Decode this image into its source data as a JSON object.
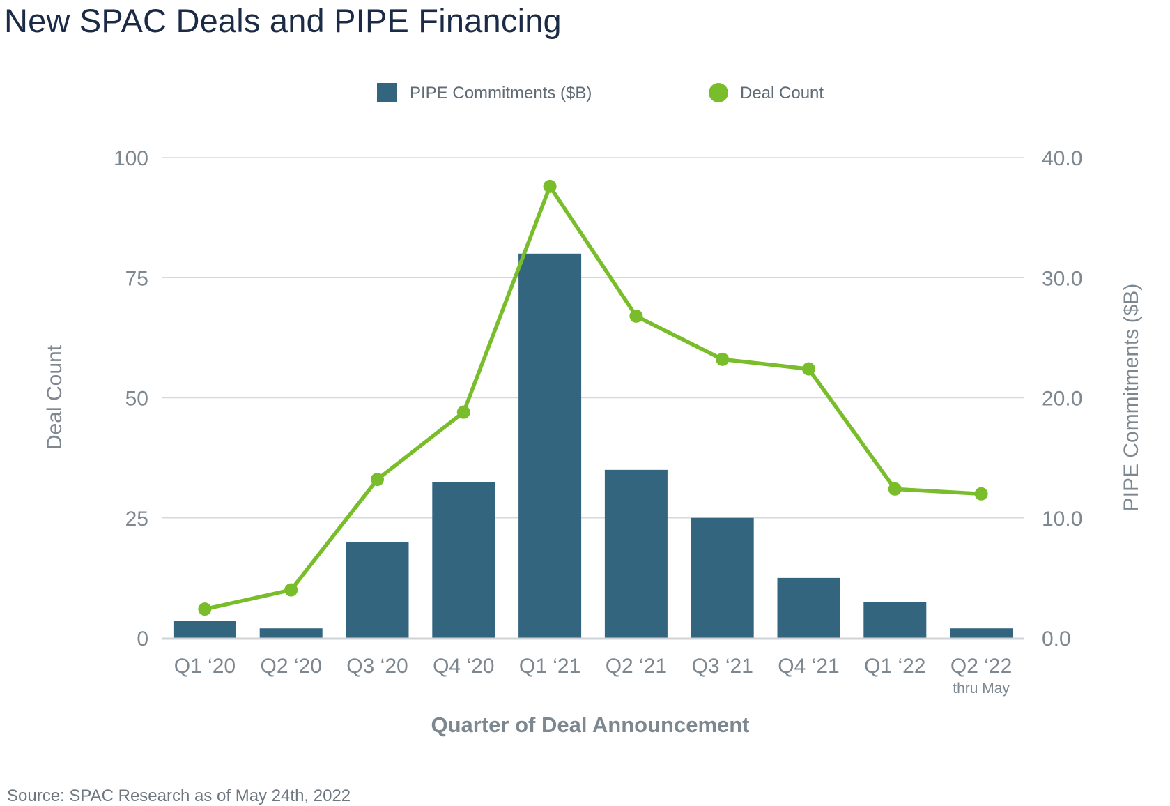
{
  "title": "New SPAC Deals and PIPE Financing",
  "source": "Source: SPAC Research as of May 24th, 2022",
  "colors": {
    "bar": "#33657f",
    "line": "#79bd2a",
    "grid": "#d5d9dc",
    "baseline": "#cfd3d6",
    "text": "#7d8790"
  },
  "chart_data": {
    "type": "bar",
    "categories": [
      "Q1 ‘20",
      "Q2 ‘20",
      "Q3 ‘20",
      "Q4 ‘20",
      "Q1 ‘21",
      "Q2 ‘21",
      "Q3 ‘21",
      "Q4 ‘21",
      "Q1 ‘22",
      "Q2 ‘22"
    ],
    "category_note": {
      "index": 9,
      "text": "thru May"
    },
    "xlabel": "Quarter of Deal Announcement",
    "y_left": {
      "label": "Deal Count",
      "ticks": [
        "0",
        "25",
        "50",
        "75",
        "100"
      ],
      "range": [
        0,
        100
      ]
    },
    "y_right": {
      "label": "PIPE Commitments ($B)",
      "ticks": [
        "0.0",
        "10.0",
        "20.0",
        "30.0",
        "40.0"
      ],
      "range": [
        0,
        40
      ]
    },
    "legend": [
      "PIPE Commitments ($B)",
      "Deal Count"
    ],
    "legend_position": "top-center",
    "grid": true,
    "series": [
      {
        "name": "PIPE Commitments ($B)",
        "type": "bar",
        "axis": "right",
        "values": [
          1.4,
          0.8,
          8.0,
          13.0,
          32.0,
          14.0,
          10.0,
          5.0,
          3.0,
          0.8
        ]
      },
      {
        "name": "Deal Count",
        "type": "line",
        "axis": "left",
        "values": [
          6,
          10,
          33,
          47,
          94,
          67,
          58,
          56,
          31,
          30
        ]
      }
    ]
  }
}
